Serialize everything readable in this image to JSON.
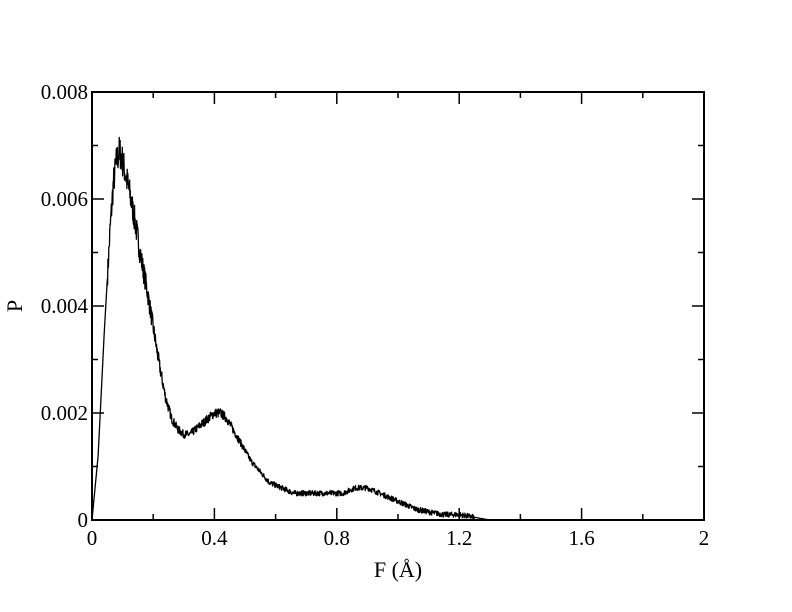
{
  "chart_data": {
    "type": "line",
    "title": "",
    "xlabel": "F (Å)",
    "ylabel": "P",
    "xlim": [
      0,
      2
    ],
    "ylim": [
      0,
      0.008
    ],
    "x_ticks": [
      0,
      0.4,
      0.8,
      1.2,
      1.6,
      2
    ],
    "x_tick_labels": [
      "0",
      "0.4",
      "0.8",
      "1.2",
      "1.6",
      "2"
    ],
    "y_ticks": [
      0,
      0.002,
      0.004,
      0.006,
      0.008
    ],
    "y_tick_labels": [
      "0",
      "0.002",
      "0.004",
      "0.006",
      "0.008"
    ],
    "grid": false,
    "legend": "none",
    "line_color": "#000000",
    "series": [
      {
        "x": [
          0,
          0.02,
          0.04,
          0.06,
          0.07,
          0.08,
          0.09,
          0.1,
          0.12,
          0.14,
          0.16,
          0.18,
          0.2,
          0.22,
          0.24,
          0.26,
          0.28,
          0.3,
          0.32,
          0.34,
          0.36,
          0.38,
          0.4,
          0.42,
          0.44,
          0.46,
          0.48,
          0.5,
          0.52,
          0.55,
          0.58,
          0.62,
          0.66,
          0.7,
          0.74,
          0.78,
          0.82,
          0.86,
          0.9,
          0.94,
          0.98,
          1.02,
          1.06,
          1.1,
          1.15,
          1.2,
          1.25,
          1.3
        ],
        "y": [
          0,
          0.0012,
          0.0035,
          0.0055,
          0.0063,
          0.0067,
          0.0069,
          0.0067,
          0.0062,
          0.0056,
          0.0049,
          0.0043,
          0.0036,
          0.0029,
          0.0023,
          0.0019,
          0.0017,
          0.0016,
          0.0016,
          0.0017,
          0.0018,
          0.0019,
          0.002,
          0.002,
          0.0019,
          0.0017,
          0.0015,
          0.0013,
          0.0011,
          0.0009,
          0.0007,
          0.0006,
          0.0005,
          0.0005,
          0.0005,
          0.0005,
          0.0005,
          0.0006,
          0.0006,
          0.0005,
          0.0004,
          0.0003,
          0.0002,
          0.00015,
          0.0001,
          0.0001,
          5e-05,
          0.0
        ]
      }
    ]
  }
}
